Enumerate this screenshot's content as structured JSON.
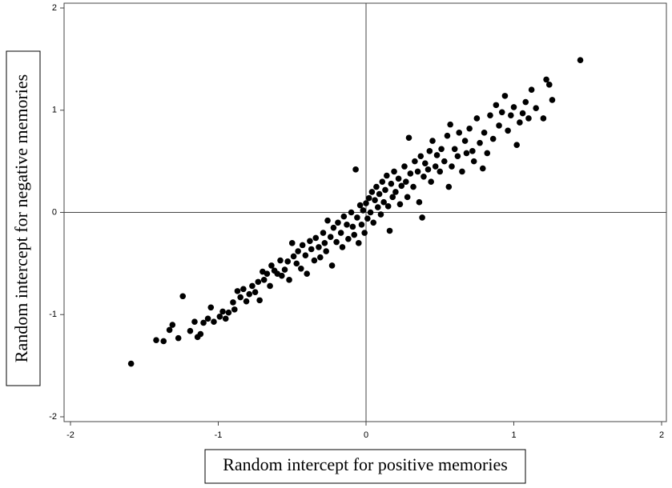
{
  "chart_data": {
    "type": "scatter",
    "x_label": "Random intercept for positive memories",
    "y_label": "Random intercept for negative memories",
    "xlim": [
      -2,
      2
    ],
    "ylim": [
      -2,
      2
    ],
    "xticks": [
      -2,
      -1,
      0,
      1,
      2
    ],
    "yticks": [
      -2,
      -1,
      0,
      1,
      2
    ],
    "ref_lines": {
      "x": 0,
      "y": 0
    },
    "color": "#000000",
    "x": [
      -1.59,
      -1.42,
      -1.37,
      -1.33,
      -1.31,
      -1.27,
      -1.24,
      -1.19,
      -1.16,
      -1.14,
      -1.12,
      -1.1,
      -1.07,
      -1.05,
      -1.03,
      -0.99,
      -0.97,
      -0.95,
      -0.93,
      -0.9,
      -0.89,
      -0.87,
      -0.85,
      -0.83,
      -0.81,
      -0.79,
      -0.77,
      -0.75,
      -0.73,
      -0.72,
      -0.7,
      -0.69,
      -0.67,
      -0.65,
      -0.64,
      -0.62,
      -0.6,
      -0.58,
      -0.57,
      -0.55,
      -0.53,
      -0.52,
      -0.5,
      -0.49,
      -0.47,
      -0.46,
      -0.44,
      -0.43,
      -0.41,
      -0.4,
      -0.38,
      -0.37,
      -0.35,
      -0.34,
      -0.32,
      -0.31,
      -0.29,
      -0.28,
      -0.27,
      -0.26,
      -0.24,
      -0.23,
      -0.22,
      -0.2,
      -0.19,
      -0.17,
      -0.16,
      -0.15,
      -0.13,
      -0.12,
      -0.1,
      -0.09,
      -0.08,
      -0.07,
      -0.06,
      -0.05,
      -0.04,
      -0.03,
      -0.02,
      -0.01,
      0.0,
      0.01,
      0.02,
      0.03,
      0.04,
      0.05,
      0.06,
      0.07,
      0.08,
      0.09,
      0.1,
      0.11,
      0.12,
      0.13,
      0.14,
      0.15,
      0.16,
      0.17,
      0.18,
      0.19,
      0.2,
      0.22,
      0.23,
      0.24,
      0.26,
      0.27,
      0.28,
      0.29,
      0.3,
      0.32,
      0.33,
      0.35,
      0.36,
      0.37,
      0.38,
      0.39,
      0.4,
      0.42,
      0.43,
      0.44,
      0.45,
      0.47,
      0.48,
      0.5,
      0.51,
      0.53,
      0.55,
      0.56,
      0.57,
      0.58,
      0.6,
      0.62,
      0.63,
      0.65,
      0.67,
      0.68,
      0.7,
      0.72,
      0.73,
      0.75,
      0.77,
      0.79,
      0.8,
      0.82,
      0.84,
      0.86,
      0.88,
      0.9,
      0.92,
      0.94,
      0.96,
      0.98,
      1.0,
      1.02,
      1.04,
      1.06,
      1.08,
      1.1,
      1.12,
      1.15,
      1.2,
      1.22,
      1.24,
      1.26,
      1.45
    ],
    "values": [
      -1.48,
      -1.25,
      -1.26,
      -1.15,
      -1.1,
      -1.23,
      -0.82,
      -1.16,
      -1.07,
      -1.22,
      -1.19,
      -1.08,
      -1.04,
      -0.93,
      -1.07,
      -1.02,
      -0.97,
      -1.04,
      -0.98,
      -0.88,
      -0.95,
      -0.77,
      -0.83,
      -0.75,
      -0.87,
      -0.8,
      -0.72,
      -0.78,
      -0.68,
      -0.86,
      -0.58,
      -0.66,
      -0.6,
      -0.72,
      -0.52,
      -0.57,
      -0.6,
      -0.47,
      -0.62,
      -0.56,
      -0.48,
      -0.66,
      -0.3,
      -0.43,
      -0.5,
      -0.38,
      -0.55,
      -0.32,
      -0.42,
      -0.6,
      -0.28,
      -0.36,
      -0.47,
      -0.25,
      -0.34,
      -0.44,
      -0.2,
      -0.3,
      -0.38,
      -0.08,
      -0.24,
      -0.52,
      -0.15,
      -0.29,
      -0.1,
      -0.2,
      -0.34,
      -0.04,
      -0.12,
      -0.26,
      0.0,
      -0.14,
      -0.22,
      0.42,
      -0.05,
      -0.3,
      0.07,
      -0.12,
      0.02,
      -0.2,
      0.09,
      -0.06,
      0.14,
      0.0,
      0.2,
      -0.1,
      0.12,
      0.25,
      0.05,
      0.18,
      -0.02,
      0.3,
      0.1,
      0.22,
      0.36,
      0.06,
      -0.18,
      0.28,
      0.15,
      0.4,
      0.2,
      0.33,
      0.08,
      0.26,
      0.45,
      0.3,
      0.15,
      0.73,
      0.38,
      0.25,
      0.5,
      0.4,
      0.1,
      0.55,
      -0.05,
      0.35,
      0.48,
      0.42,
      0.6,
      0.3,
      0.7,
      0.45,
      0.56,
      0.4,
      0.62,
      0.5,
      0.75,
      0.25,
      0.86,
      0.45,
      0.62,
      0.55,
      0.78,
      0.4,
      0.7,
      0.58,
      0.82,
      0.6,
      0.5,
      0.92,
      0.68,
      0.43,
      0.78,
      0.58,
      0.95,
      0.72,
      1.05,
      0.85,
      0.98,
      1.14,
      0.8,
      0.95,
      1.03,
      0.66,
      0.88,
      0.97,
      1.08,
      0.92,
      1.2,
      1.02,
      0.92,
      1.3,
      1.25,
      1.1,
      1.49
    ]
  }
}
